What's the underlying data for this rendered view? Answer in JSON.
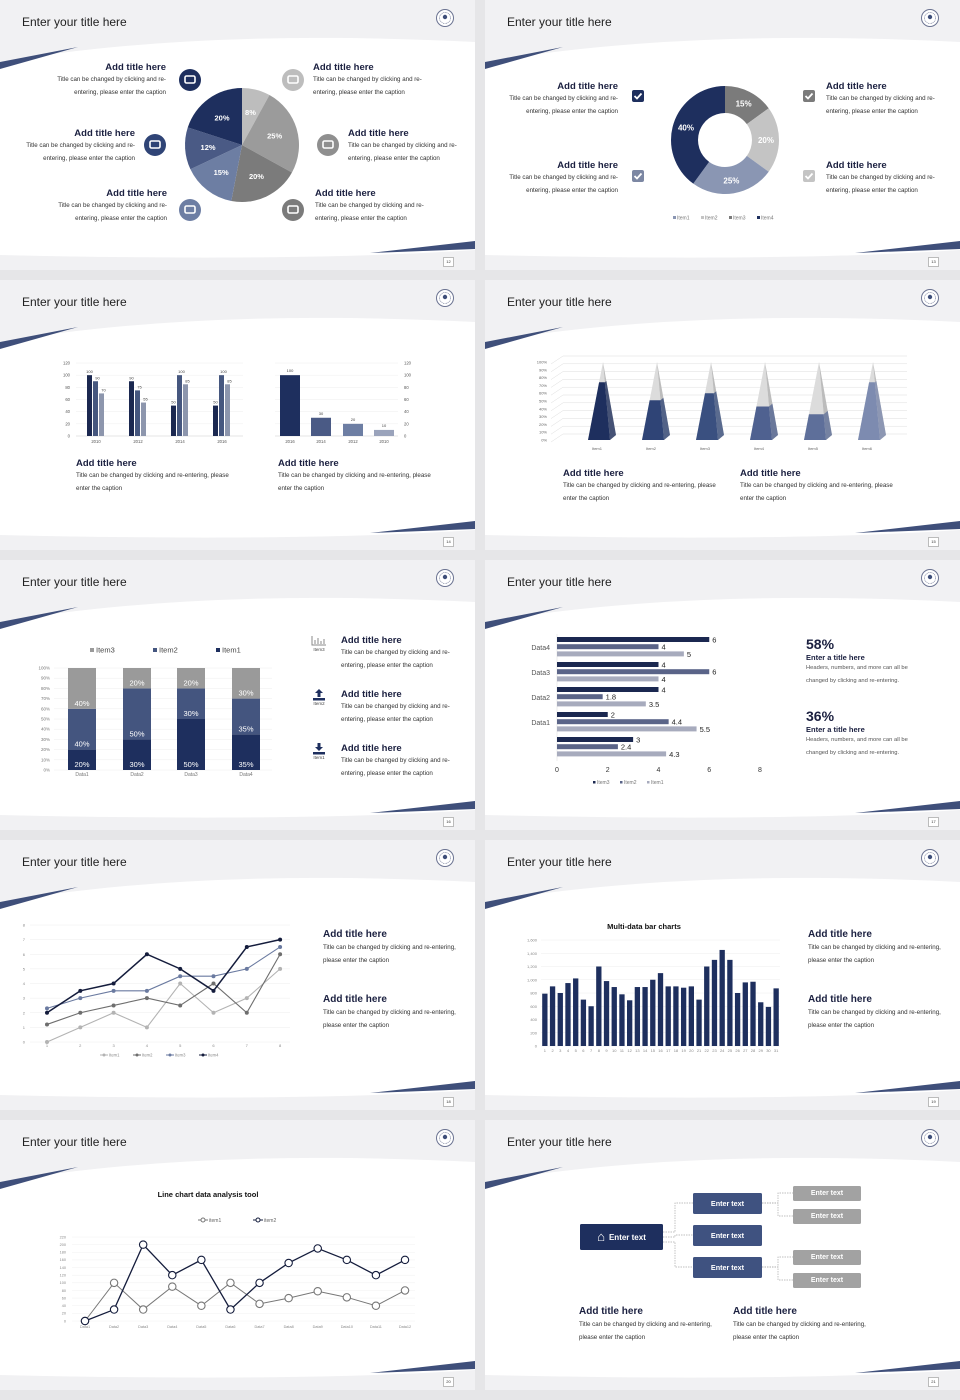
{
  "accent_color": "#1e2d5a",
  "slides": [
    {
      "page": "12",
      "title": "Enter your title here",
      "blocks": [
        {
          "title": "Add title here",
          "text": "Title can be changed by clicking and re-entering, please enter the caption",
          "icon": "monitor-icon"
        },
        {
          "title": "Add title here",
          "text": "Title can be changed by clicking and re-entering, please enter the caption",
          "icon": "car-icon"
        },
        {
          "title": "Add title here",
          "text": "Title can be changed by clicking and re-entering, please enter the caption",
          "icon": "book-icon"
        },
        {
          "title": "Add title here",
          "text": "Title can be changed by clicking and re-entering, please enter the caption",
          "icon": "phone-icon"
        },
        {
          "title": "Add title here",
          "text": "Title can be changed by clicking and re-entering, please enter the caption",
          "icon": "binoculars-icon"
        },
        {
          "title": "Add title here",
          "text": "Title can be changed by clicking and re-entering, please enter the caption",
          "icon": "bicycle-icon"
        }
      ]
    },
    {
      "page": "13",
      "title": "Enter your title here",
      "blocks": [
        {
          "title": "Add title here",
          "text": "Title can be changed by clicking and re-entering, please enter the caption",
          "icon": "checkbox-icon"
        },
        {
          "title": "Add title here",
          "text": "Title can be changed by clicking and re-entering, please enter the caption",
          "icon": "checkbox-icon"
        },
        {
          "title": "Add title here",
          "text": "Title can be changed by clicking and re-entering, please enter the caption",
          "icon": "checkbox-icon"
        },
        {
          "title": "Add title here",
          "text": "Title can be changed by clicking and re-entering, please enter the caption",
          "icon": "checkbox-icon"
        }
      ]
    },
    {
      "page": "14",
      "title": "Enter your title here",
      "blocks": [
        {
          "title": "Add title here",
          "text": "Title can be changed by clicking and re-entering, please enter the caption"
        },
        {
          "title": "Add title here",
          "text": "Title can be changed by clicking and re-entering, please enter the caption"
        }
      ]
    },
    {
      "page": "15",
      "title": "Enter your title here",
      "blocks": [
        {
          "title": "Add title here",
          "text": "Title can be changed by clicking and re-entering, please enter the caption"
        },
        {
          "title": "Add title here",
          "text": "Title can be changed by clicking and re-entering, please enter the caption"
        }
      ]
    },
    {
      "page": "16",
      "title": "Enter your title here",
      "blocks": [
        {
          "title": "Add title here",
          "text": "Title can be changed by clicking and re-entering, please enter the caption",
          "icon": "bar-chart-icon",
          "icon_label": "Item3"
        },
        {
          "title": "Add title here",
          "text": "Title can be changed by clicking and re-entering, please enter the caption",
          "icon": "upload-icon",
          "icon_label": "Item2"
        },
        {
          "title": "Add title here",
          "text": "Title can be changed by clicking and re-entering, please enter the caption",
          "icon": "download-icon",
          "icon_label": "Item1"
        }
      ]
    },
    {
      "page": "17",
      "title": "Enter your title here",
      "blocks": [
        {
          "value": "58%",
          "title": "Enter a title here",
          "text": "Headers, numbers, and more can all be changed by clicking and re-entering."
        },
        {
          "value": "36%",
          "title": "Enter a title here",
          "text": "Headers, numbers, and more can all be changed by clicking and re-entering."
        }
      ]
    },
    {
      "page": "18",
      "title": "Enter your title here",
      "blocks": [
        {
          "title": "Add title here",
          "text": "Title can be changed by clicking and re-entering, please enter the caption"
        },
        {
          "title": "Add title here",
          "text": "Title can be changed by clicking and re-entering, please enter the caption"
        }
      ]
    },
    {
      "page": "19",
      "title": "Enter your title here",
      "blocks": [
        {
          "title": "Add title here",
          "text": "Title can be changed by clicking and re-entering, please enter the caption"
        },
        {
          "title": "Add title here",
          "text": "Title can be changed by clicking and re-entering, please enter the caption"
        }
      ]
    },
    {
      "page": "20",
      "title": "Enter your title here"
    },
    {
      "page": "21",
      "title": "Enter your title here",
      "blocks": [
        {
          "title": "Add title here",
          "text": "Title can be changed by clicking and re-entering, please enter the caption"
        },
        {
          "title": "Add title here",
          "text": "Title can be changed by clicking and re-entering, please enter the caption"
        }
      ],
      "tree": {
        "root": "Enter text",
        "root_icon": "home-icon",
        "children": [
          {
            "label": "Enter text",
            "children": [
              "Enter text",
              "Enter text"
            ]
          },
          {
            "label": "Enter text",
            "children": []
          },
          {
            "label": "Enter text",
            "children": [
              "Enter text",
              "Enter text"
            ]
          }
        ]
      }
    }
  ],
  "chart_data": [
    {
      "type": "pie",
      "values": [
        8,
        25,
        20,
        15,
        12,
        20
      ],
      "labels": [
        "8%",
        "25%",
        "20%",
        "15%",
        "12%",
        "20%"
      ],
      "colors": [
        "#bdbdbd",
        "#9b9b9b",
        "#7b7b7b",
        "#6d7ea3",
        "#4a5a85",
        "#1e2f5e"
      ]
    },
    {
      "type": "pie",
      "donut": true,
      "categories": [
        "Item1",
        "Item2",
        "Item3",
        "Item4"
      ],
      "values": [
        25,
        20,
        15,
        40
      ],
      "labels": [
        "25%",
        "20%",
        "15%",
        "40%"
      ],
      "colors": [
        "#8a96b3",
        "#c4c4c4",
        "#7b7b7b",
        "#1e2f5e"
      ],
      "legend": "bottom"
    },
    {
      "type": "bar",
      "categories": [
        "2010",
        "2012",
        "2014",
        "2016"
      ],
      "series": [
        {
          "values": [
            100,
            90,
            50,
            50
          ]
        },
        {
          "values": [
            90,
            75,
            100,
            100
          ]
        },
        {
          "values": [
            70,
            55,
            85,
            85
          ]
        }
      ],
      "ylim": [
        0,
        120
      ],
      "yticks": [
        "0",
        "20",
        "40",
        "60",
        "80",
        "100",
        "120"
      ],
      "colors": [
        "#1b2850",
        "#46577f",
        "#8d96ad"
      ]
    },
    {
      "type": "bar",
      "categories": [
        "2016",
        "2014",
        "2012",
        "2010"
      ],
      "values": [
        100,
        30,
        20,
        10
      ],
      "ylim": [
        0,
        120
      ],
      "yticks": [
        "0",
        "20",
        "40",
        "60",
        "80",
        "100",
        "120"
      ],
      "yaxis": "right",
      "colors": [
        "#1e2f5e",
        "#4a5a85",
        "#6d7ea3",
        "#9aa3bb"
      ]
    },
    {
      "type": "bar",
      "style": "3d-pyramid",
      "categories": [
        "Item1",
        "Item2",
        "Item3",
        "Item4",
        "Item5",
        "Item6"
      ],
      "values": [
        74,
        51,
        60,
        43,
        33,
        74
      ],
      "ylim": [
        0,
        100
      ],
      "yticks": [
        "0%",
        "10%",
        "20%",
        "30%",
        "40%",
        "50%",
        "60%",
        "70%",
        "80%",
        "90%",
        "100%"
      ],
      "colors": [
        "#1e2f5e",
        "#2f4476",
        "#3a5080",
        "#4f6190",
        "#5e6f9a",
        "#7d8bb0"
      ]
    },
    {
      "type": "bar",
      "stacked": true,
      "categories": [
        "Data1",
        "Data2",
        "Data3",
        "Data4"
      ],
      "series": [
        {
          "name": "Item1",
          "values": [
            20,
            30,
            50,
            35
          ],
          "color": "#1e2f5e"
        },
        {
          "name": "Item2",
          "values": [
            40,
            50,
            30,
            35
          ],
          "color": "#44557f"
        },
        {
          "name": "Item3",
          "values": [
            40,
            20,
            20,
            30
          ],
          "color": "#9a9a9a"
        }
      ],
      "ylim": [
        0,
        100
      ],
      "yticks": [
        "0%",
        "10%",
        "20%",
        "30%",
        "40%",
        "50%",
        "60%",
        "70%",
        "80%",
        "90%",
        "100%"
      ],
      "legend": "top",
      "legend_order": [
        "Item3",
        "Item2",
        "Item1"
      ]
    },
    {
      "type": "bar",
      "orientation": "horizontal",
      "categories": [
        "Data4",
        "Data3",
        "Data2",
        "Data1",
        ""
      ],
      "series": [
        {
          "name": "Item3",
          "values": [
            6,
            4,
            4,
            2,
            3
          ],
          "color": "#1b2850"
        },
        {
          "name": "Item2",
          "values": [
            4,
            6,
            1.8,
            4.4,
            2.4
          ],
          "color": "#5a6488"
        },
        {
          "name": "Item1",
          "values": [
            5,
            4,
            3.5,
            5.5,
            4.3
          ],
          "color": "#a7abbd"
        }
      ],
      "xlim": [
        0,
        8
      ],
      "xticks": [
        "0",
        "2",
        "4",
        "6",
        "8"
      ],
      "legend": "bottom"
    },
    {
      "type": "line",
      "x": [
        "1",
        "2",
        "3",
        "4",
        "5",
        "6",
        "7",
        "8"
      ],
      "series": [
        {
          "name": "Item1",
          "values": [
            0,
            1,
            2,
            1,
            4,
            2,
            3,
            5
          ],
          "color": "#b3b3b3"
        },
        {
          "name": "Item2",
          "values": [
            1.2,
            2,
            2.5,
            3,
            2.5,
            4,
            2,
            6
          ],
          "color": "#6e6e6e"
        },
        {
          "name": "Item3",
          "values": [
            2.3,
            3,
            3.5,
            3.5,
            4.5,
            4.5,
            5,
            6.5
          ],
          "color": "#6a7aa0"
        },
        {
          "name": "Item4",
          "values": [
            2,
            3.5,
            4,
            6,
            5,
            3.5,
            6.5,
            7
          ],
          "color": "#141c3c"
        }
      ],
      "ylim": [
        0,
        8
      ],
      "yticks": [
        "0",
        "1",
        "2",
        "3",
        "4",
        "5",
        "6",
        "7",
        "8"
      ],
      "legend": "bottom"
    },
    {
      "type": "bar",
      "title": "Multi-data bar charts",
      "categories": [
        "1",
        "2",
        "3",
        "4",
        "5",
        "6",
        "7",
        "8",
        "9",
        "10",
        "11",
        "12",
        "13",
        "14",
        "15",
        "16",
        "17",
        "18",
        "19",
        "20",
        "21",
        "22",
        "23",
        "24",
        "25",
        "26",
        "27",
        "28",
        "29",
        "30",
        "31"
      ],
      "values": [
        790,
        900,
        800,
        950,
        1020,
        700,
        600,
        1200,
        980,
        890,
        780,
        690,
        890,
        890,
        1000,
        1100,
        900,
        900,
        880,
        900,
        700,
        1200,
        1300,
        1450,
        1300,
        800,
        960,
        970,
        660,
        590,
        870
      ],
      "ylim": [
        0,
        1600
      ],
      "yticks": [
        "0",
        "200",
        "400",
        "600",
        "800",
        "1,000",
        "1,200",
        "1,400",
        "1,600"
      ],
      "color": "#1e2f5e"
    },
    {
      "type": "line",
      "title": "Line chart data analysis tool",
      "categories": [
        "Data1",
        "Data2",
        "Data3",
        "Data4",
        "Data5",
        "Data6",
        "Data7",
        "Data8",
        "Data9",
        "Data10",
        "Data11",
        "Data12"
      ],
      "series": [
        {
          "name": "item1",
          "values": [
            0,
            100,
            30,
            90,
            40,
            100,
            45,
            60,
            78,
            62,
            40,
            80
          ],
          "color": "#777777"
        },
        {
          "name": "item2",
          "values": [
            0,
            30,
            200,
            120,
            160,
            30,
            100,
            152,
            190,
            160,
            120,
            160
          ],
          "color": "#141c3c"
        }
      ],
      "ylim": [
        0,
        220
      ],
      "yticks": [
        "0",
        "20",
        "40",
        "60",
        "80",
        "100",
        "120",
        "140",
        "160",
        "180",
        "200",
        "220"
      ],
      "legend": "top"
    }
  ]
}
